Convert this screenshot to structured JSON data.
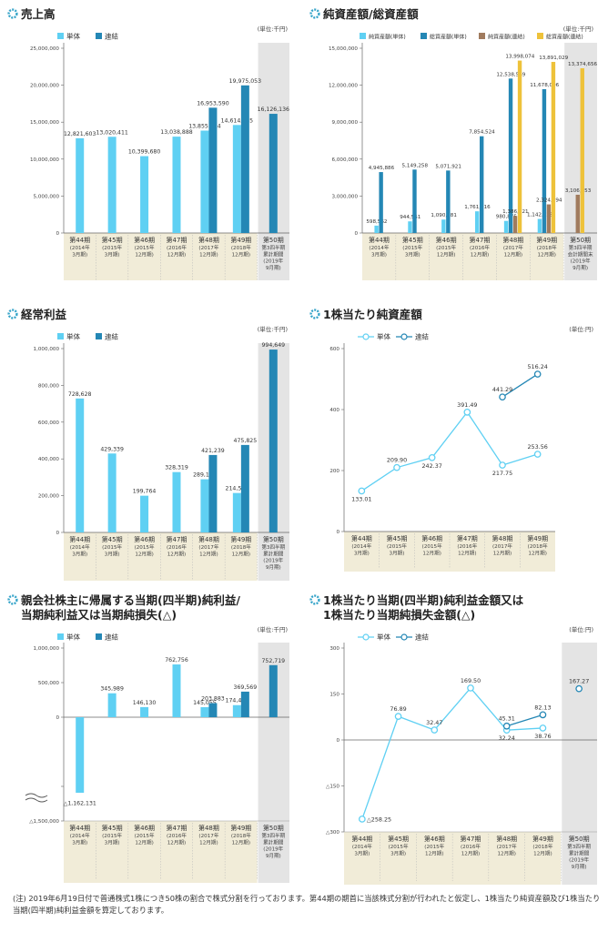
{
  "colors": {
    "single": "#5fd0f3",
    "consolidated": "#2487b5",
    "nav_cons": "#a07b5e",
    "ta_cons": "#eec23a",
    "band": "#f1ecd8",
    "shade": "#e4e4e4",
    "axis": "#666666",
    "grid": "#e6e6e6",
    "title_icon": "#36a4c9"
  },
  "footnote": "(注) 2019年6月19日付で普通株式1株につき50株の割合で株式分割を行っております。第44期の期首に当該株式分割が行われたと仮定し、1株当たり純資産額及び1株当たり当期(四半期)純利益金額を算定しております。",
  "chart_data": [
    {
      "id": "sales",
      "type": "bar",
      "title": "売上高",
      "unit": "(単位:千円)",
      "legend": [
        "単体",
        "連結"
      ],
      "legend_position": "top-left",
      "ylim": [
        0,
        25000000
      ],
      "yticks": [
        0,
        5000000,
        10000000,
        15000000,
        20000000,
        25000000
      ],
      "ytick_labels": [
        "0",
        "5,000,000",
        "10,000,000",
        "15,000,000",
        "20,000,000",
        "25,000,000"
      ],
      "categories": [
        {
          "period": "第44期",
          "sub": [
            "(2014年",
            "3月期)"
          ]
        },
        {
          "period": "第45期",
          "sub": [
            "(2015年",
            "3月期)"
          ]
        },
        {
          "period": "第46期",
          "sub": [
            "(2015年",
            "12月期)"
          ]
        },
        {
          "period": "第47期",
          "sub": [
            "(2016年",
            "12月期)"
          ]
        },
        {
          "period": "第48期",
          "sub": [
            "(2017年",
            "12月期)"
          ]
        },
        {
          "period": "第49期",
          "sub": [
            "(2018年",
            "12月期)"
          ]
        },
        {
          "period": "第50期",
          "sub": [
            "第3四半期",
            "累計期間",
            "(2019年",
            "9月期)"
          ]
        }
      ],
      "highlight_last": true,
      "series": [
        {
          "name": "単体",
          "color": "#5fd0f3",
          "values": [
            12821603,
            13020411,
            10399680,
            13038888,
            13855234,
            14614185,
            null
          ],
          "labels": [
            "12,821,603",
            "13,020,411",
            "10,399,680",
            "13,038,888",
            "13,855,234",
            "14,614,185",
            null
          ]
        },
        {
          "name": "連結",
          "color": "#2487b5",
          "values": [
            null,
            null,
            null,
            null,
            16953590,
            19975053,
            16126136
          ],
          "labels": [
            null,
            null,
            null,
            null,
            "16,953,590",
            "19,975,053",
            "16,126,136"
          ]
        }
      ]
    },
    {
      "id": "assets",
      "type": "bar",
      "title": "純資産額/総資産額",
      "unit": "(単位:千円)",
      "legend": [
        "純資産額(単体)",
        "総資産額(単体)",
        "純資産額(連結)",
        "総資産額(連結)"
      ],
      "legend_position": "top-left",
      "ylim": [
        0,
        15000000
      ],
      "yticks": [
        0,
        3000000,
        6000000,
        9000000,
        12000000,
        15000000
      ],
      "ytick_labels": [
        "0",
        "3,000,000",
        "6,000,000",
        "9,000,000",
        "12,000,000",
        "15,000,000"
      ],
      "categories": [
        {
          "period": "第44期",
          "sub": [
            "(2014年",
            "3月期)"
          ]
        },
        {
          "period": "第45期",
          "sub": [
            "(2015年",
            "3月期)"
          ]
        },
        {
          "period": "第46期",
          "sub": [
            "(2015年",
            "12月期)"
          ]
        },
        {
          "period": "第47期",
          "sub": [
            "(2016年",
            "12月期)"
          ]
        },
        {
          "period": "第48期",
          "sub": [
            "(2017年",
            "12月期)"
          ]
        },
        {
          "period": "第49期",
          "sub": [
            "(2018年",
            "12月期)"
          ]
        },
        {
          "period": "第50期",
          "sub": [
            "第3四半期",
            "会計期間末",
            "(2019年",
            "9月期)"
          ]
        }
      ],
      "highlight_last": true,
      "series": [
        {
          "name": "純資産額(単体)",
          "color": "#5fd0f3",
          "values": [
            598562,
            944551,
            1090681,
            1761716,
            980875,
            1142028,
            null
          ],
          "labels": [
            "598,562",
            "944,551",
            "1,090,681",
            "1,761,716",
            "980,875",
            "1,142,028",
            null
          ]
        },
        {
          "name": "総資産額(単体)",
          "color": "#2487b5",
          "values": [
            4945886,
            5149258,
            5071921,
            7854524,
            12538569,
            11678096,
            null
          ],
          "labels": [
            "4,945,886",
            "5,149,258",
            "5,071,921",
            "7,854,524",
            "12,538,569",
            "11,678,096",
            null
          ]
        },
        {
          "name": "純資産額(連結)",
          "color": "#a07b5e",
          "values": [
            null,
            null,
            null,
            null,
            1386821,
            2324094,
            3106453
          ],
          "labels": [
            null,
            null,
            null,
            null,
            "1,386,821",
            "2,324,094",
            "3,106,453"
          ]
        },
        {
          "name": "総資産額(連結)",
          "color": "#eec23a",
          "values": [
            null,
            null,
            null,
            null,
            13998074,
            13891029,
            13374656
          ],
          "labels": [
            null,
            null,
            null,
            null,
            "13,998,074",
            "13,891,029",
            "13,374,656"
          ]
        }
      ]
    },
    {
      "id": "ordinary",
      "type": "bar",
      "title": "経常利益",
      "unit": "(単位:千円)",
      "legend": [
        "単体",
        "連結"
      ],
      "legend_position": "top-left",
      "ylim": [
        0,
        1000000
      ],
      "yticks": [
        0,
        200000,
        400000,
        600000,
        800000,
        1000000
      ],
      "ytick_labels": [
        "0",
        "200,000",
        "400,000",
        "600,000",
        "800,000",
        "1,000,000"
      ],
      "categories": [
        {
          "period": "第44期",
          "sub": [
            "(2014年",
            "3月期)"
          ]
        },
        {
          "period": "第45期",
          "sub": [
            "(2015年",
            "3月期)"
          ]
        },
        {
          "period": "第46期",
          "sub": [
            "(2015年",
            "12月期)"
          ]
        },
        {
          "period": "第47期",
          "sub": [
            "(2016年",
            "12月期)"
          ]
        },
        {
          "period": "第48期",
          "sub": [
            "(2017年",
            "12月期)"
          ]
        },
        {
          "period": "第49期",
          "sub": [
            "(2018年",
            "12月期)"
          ]
        },
        {
          "period": "第50期",
          "sub": [
            "第3四半期",
            "累計期間",
            "(2019年",
            "9月期)"
          ]
        }
      ],
      "highlight_last": true,
      "series": [
        {
          "name": "単体",
          "color": "#5fd0f3",
          "values": [
            728628,
            429339,
            199764,
            328319,
            289161,
            214576,
            null
          ],
          "labels": [
            "728,628",
            "429,339",
            "199,764",
            "328,319",
            "289,161",
            "214,576",
            null
          ]
        },
        {
          "name": "連結",
          "color": "#2487b5",
          "values": [
            null,
            null,
            null,
            null,
            421239,
            475825,
            994649
          ],
          "labels": [
            null,
            null,
            null,
            null,
            "421,239",
            "475,825",
            "994,649"
          ]
        }
      ]
    },
    {
      "id": "bps",
      "type": "line",
      "title": "1株当たり純資産額",
      "unit": "(単位:円)",
      "legend": [
        "単体",
        "連結"
      ],
      "legend_position": "top-left",
      "ylim": [
        0,
        600
      ],
      "yticks": [
        0,
        200,
        400,
        600
      ],
      "ytick_labels": [
        "0",
        "200",
        "400",
        "600"
      ],
      "categories": [
        {
          "period": "第44期",
          "sub": [
            "(2014年",
            "3月期)"
          ]
        },
        {
          "period": "第45期",
          "sub": [
            "(2015年",
            "3月期)"
          ]
        },
        {
          "period": "第46期",
          "sub": [
            "(2015年",
            "12月期)"
          ]
        },
        {
          "period": "第47期",
          "sub": [
            "(2016年",
            "12月期)"
          ]
        },
        {
          "period": "第48期",
          "sub": [
            "(2017年",
            "12月期)"
          ]
        },
        {
          "period": "第49期",
          "sub": [
            "(2018年",
            "12月期)"
          ]
        }
      ],
      "highlight_last": false,
      "series": [
        {
          "name": "単体",
          "color": "#5fd0f3",
          "values": [
            133.01,
            209.9,
            242.37,
            391.49,
            217.75,
            253.56
          ],
          "labels": [
            "133.01",
            "209.90",
            "242.37",
            "391.49",
            "217.75",
            "253.56"
          ],
          "label_pos": [
            "below",
            "above",
            "below",
            "above",
            "below",
            "above"
          ]
        },
        {
          "name": "連結",
          "color": "#2487b5",
          "values": [
            null,
            null,
            null,
            null,
            441.29,
            516.24
          ],
          "labels": [
            null,
            null,
            null,
            null,
            "441.29",
            "516.24"
          ],
          "label_pos": [
            null,
            null,
            null,
            null,
            "above",
            "above"
          ]
        }
      ]
    },
    {
      "id": "netincome",
      "type": "bar",
      "title": "親会社株主に帰属する当期(四半期)純利益/",
      "title2": "当期純利益又は当期純損失(△)",
      "unit": "(単位:千円)",
      "legend": [
        "単体",
        "連結"
      ],
      "legend_position": "top-left",
      "ylim": [
        -1500000,
        1000000
      ],
      "yticks": [
        -1500000,
        -1000000,
        0,
        500000,
        1000000
      ],
      "ytick_labels": [
        "△1,500,000",
        "",
        "0",
        "500,000",
        "1,000,000"
      ],
      "axis_break": true,
      "categories": [
        {
          "period": "第44期",
          "sub": [
            "(2014年",
            "3月期)"
          ]
        },
        {
          "period": "第45期",
          "sub": [
            "(2015年",
            "3月期)"
          ]
        },
        {
          "period": "第46期",
          "sub": [
            "(2015年",
            "12月期)"
          ]
        },
        {
          "period": "第47期",
          "sub": [
            "(2016年",
            "12月期)"
          ]
        },
        {
          "period": "第48期",
          "sub": [
            "(2017年",
            "12月期)"
          ]
        },
        {
          "period": "第49期",
          "sub": [
            "(2018年",
            "12月期)"
          ]
        },
        {
          "period": "第50期",
          "sub": [
            "第3四半期",
            "累計期間",
            "(2019年",
            "9月期)"
          ]
        }
      ],
      "highlight_last": true,
      "series": [
        {
          "name": "単体",
          "color": "#5fd0f3",
          "values": [
            -1162131,
            345989,
            146130,
            762756,
            145055,
            174430,
            null
          ],
          "labels": [
            "△1,162,131",
            "345,989",
            "146,130",
            "762,756",
            "145,055",
            "174,430",
            null
          ]
        },
        {
          "name": "連結",
          "color": "#2487b5",
          "values": [
            null,
            null,
            null,
            null,
            203883,
            369569,
            752719
          ],
          "labels": [
            null,
            null,
            null,
            null,
            "203,883",
            "369,569",
            "752,719"
          ]
        }
      ]
    },
    {
      "id": "eps",
      "type": "line",
      "title": "1株当たり当期(四半期)純利益金額又は",
      "title2": "1株当たり当期純損失金額(△)",
      "unit": "(単位:円)",
      "legend": [
        "単体",
        "連結"
      ],
      "legend_position": "top-left",
      "ylim": [
        -300,
        300
      ],
      "yticks": [
        -300,
        -150,
        0,
        150,
        300
      ],
      "ytick_labels": [
        "△300",
        "△150",
        "0",
        "150",
        "300"
      ],
      "categories": [
        {
          "period": "第44期",
          "sub": [
            "(2014年",
            "3月期)"
          ]
        },
        {
          "period": "第45期",
          "sub": [
            "(2015年",
            "3月期)"
          ]
        },
        {
          "period": "第46期",
          "sub": [
            "(2015年",
            "12月期)"
          ]
        },
        {
          "period": "第47期",
          "sub": [
            "(2016年",
            "12月期)"
          ]
        },
        {
          "period": "第48期",
          "sub": [
            "(2017年",
            "12月期)"
          ]
        },
        {
          "period": "第49期",
          "sub": [
            "(2018年",
            "12月期)"
          ]
        },
        {
          "period": "第50期",
          "sub": [
            "第3四半期",
            "累計期間",
            "(2019年",
            "9月期)"
          ]
        }
      ],
      "highlight_last": true,
      "series": [
        {
          "name": "単体",
          "color": "#5fd0f3",
          "values": [
            -258.25,
            76.89,
            32.47,
            169.5,
            32.24,
            38.76,
            null
          ],
          "labels": [
            "△258.25",
            "76.89",
            "32.47",
            "169.50",
            "32.24",
            "38.76",
            null
          ],
          "label_pos": [
            "right",
            "above",
            "above",
            "above",
            "below",
            "below"
          ]
        },
        {
          "name": "連結",
          "color": "#2487b5",
          "values": [
            null,
            null,
            null,
            null,
            45.31,
            82.13,
            167.27
          ],
          "labels": [
            null,
            null,
            null,
            null,
            "45.31",
            "82.13",
            "167.27"
          ],
          "label_pos": [
            null,
            null,
            null,
            null,
            "above",
            "above",
            "above"
          ],
          "break_before_last": true
        }
      ]
    }
  ]
}
